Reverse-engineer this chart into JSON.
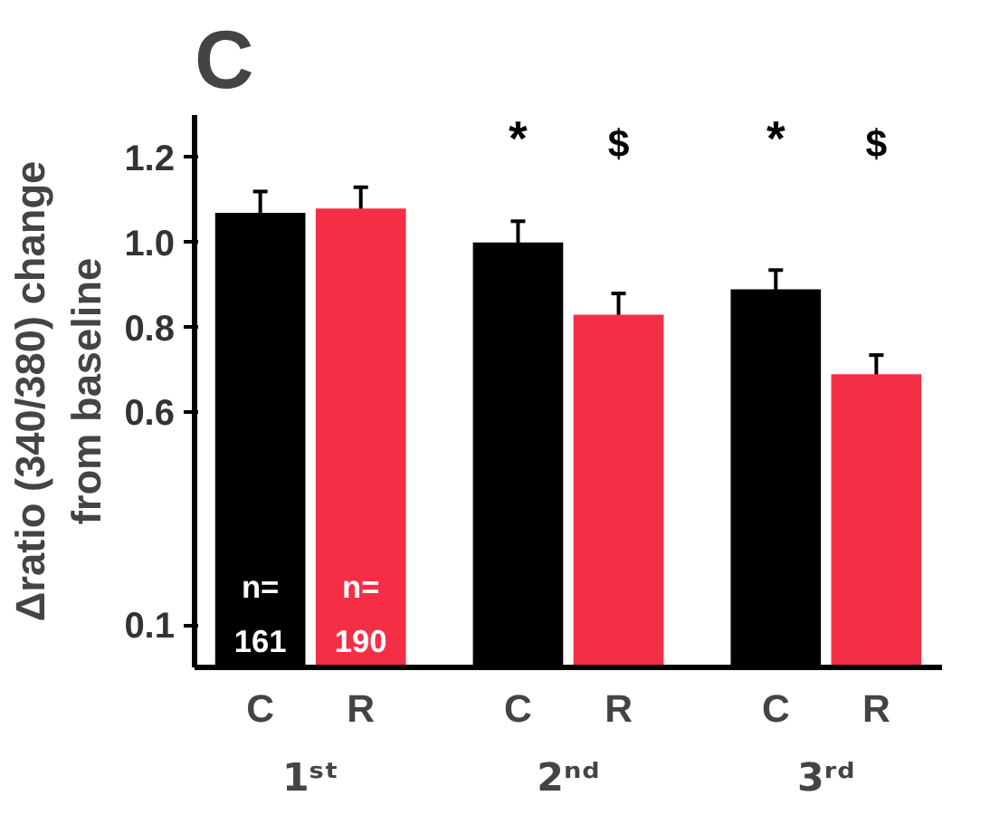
{
  "chart_data": {
    "type": "bar",
    "title": "C",
    "ylabel": "Δratio (340/380) change\nfrom baseline",
    "categories": [
      "1ˢᵗ",
      "2ⁿᵈ",
      "3ʳᵈ"
    ],
    "series": [
      {
        "name": "C",
        "color": "#000000",
        "values": [
          1.07,
          1.0,
          0.89
        ],
        "errors": [
          0.05,
          0.05,
          0.045
        ]
      },
      {
        "name": "R",
        "color": "#f42f45",
        "values": [
          1.08,
          0.83,
          0.69
        ],
        "errors": [
          0.05,
          0.05,
          0.045
        ]
      }
    ],
    "ylim": [
      0.0,
      1.3
    ],
    "yticks": [
      0.1,
      0.6,
      0.8,
      {
        "value": 1.0,
        "label": "1.0"
      },
      1.2
    ],
    "annotations": [
      "n=\n161",
      "n=\n190",
      "*",
      "$",
      "*",
      "$"
    ],
    "grid": false
  }
}
